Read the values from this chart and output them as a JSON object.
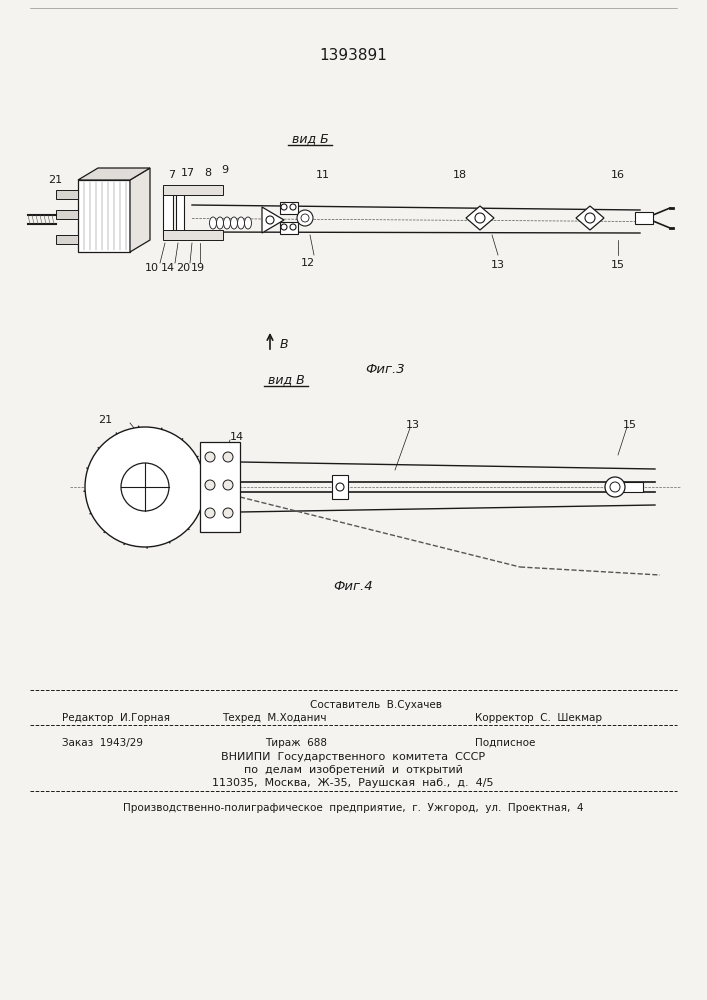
{
  "patent_number": "1393891",
  "bg": "#f5f3ef",
  "white": "#ffffff",
  "black": "#1a1a1a",
  "gray": "#888888",
  "lgray": "#cccccc",
  "vid_b": "вид Б",
  "vid_v": "вид В",
  "fig3": "Фиг.3",
  "fig4": "Фиг.4",
  "footer_sestavitel_top": "Составитель  В.Сухачев",
  "footer_redaktor": "Редактор  И.Горная",
  "footer_tehred": "Техред  М.Ходанич",
  "footer_korrektor": "Корректор  С.  Шекмар",
  "footer_zakaz": "Заказ  1943/29",
  "footer_tirazh": "Тираж  688",
  "footer_podpisnoe": "Подписное",
  "footer_vniip1": "ВНИИПИ  Государственного  комитета  СССР",
  "footer_vniip2": "по  делам  изобретений  и  открытий",
  "footer_vniip3": "113035,  Москва,  Ж-35,  Раушская  наб.,  д.  4/5",
  "footer_poligraf": "Производственно-полиграфическое  предприятие,  г.  Ужгород,  ул.  Проектная,  4"
}
